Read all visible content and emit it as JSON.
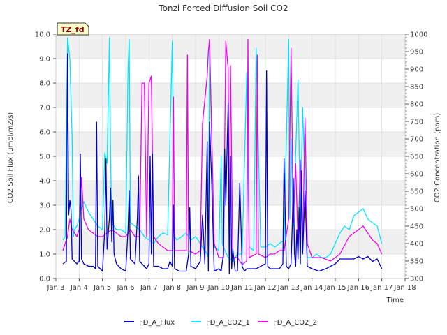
{
  "chart_data": {
    "type": "line",
    "title": "Tonzi Forced Diffusion Soil CO2",
    "badge": "TZ_fd",
    "xlabel": "Time",
    "ylabel": "CO2 Soil Flux (umol/m2/s)",
    "ylabel_right": "CO2 Concentration (ppm)",
    "xlim": [
      3,
      18
    ],
    "ylim": [
      0,
      10
    ],
    "ylim_right": [
      300,
      1000
    ],
    "x_ticks": [
      3,
      4,
      5,
      6,
      7,
      8,
      9,
      10,
      11,
      12,
      13,
      14,
      15,
      16,
      17,
      18
    ],
    "x_tick_labels": [
      "Jan 3",
      "Jan 4",
      "Jan 5",
      "Jan 6",
      "Jan 7",
      "Jan 8",
      "Jan 9",
      "Jan 10",
      "Jan 11",
      "Jan 12",
      "Jan 13",
      "Jan 14",
      "Jan 15",
      "Jan 16",
      "Jan 17",
      "Jan 18"
    ],
    "y_ticks": [
      0,
      1,
      2,
      3,
      4,
      5,
      6,
      7,
      8,
      9,
      10
    ],
    "y_tick_labels": [
      "0.0",
      "1.0",
      "2.0",
      "3.0",
      "4.0",
      "5.0",
      "6.0",
      "7.0",
      "8.0",
      "9.0",
      "10.0"
    ],
    "y_ticks_right": [
      300,
      350,
      400,
      450,
      500,
      550,
      600,
      650,
      700,
      750,
      800,
      850,
      900,
      950,
      1000
    ],
    "y_tick_labels_right": [
      "300",
      "350",
      "400",
      "450",
      "500",
      "550",
      "600",
      "650",
      "700",
      "750",
      "800",
      "850",
      "900",
      "950",
      "1000"
    ],
    "grid": true,
    "legend_position": "bottom",
    "series": [
      {
        "name": "FD_A_Flux",
        "axis": "left",
        "color": "#0000cc",
        "x": [
          3.3,
          3.45,
          3.5,
          3.55,
          3.6,
          3.65,
          3.7,
          3.8,
          3.9,
          4.0,
          4.05,
          4.1,
          4.2,
          4.4,
          4.6,
          4.7,
          4.75,
          4.8,
          5.0,
          5.1,
          5.15,
          5.2,
          5.3,
          5.35,
          5.4,
          5.45,
          5.5,
          5.6,
          5.8,
          6.0,
          6.1,
          6.15,
          6.2,
          6.4,
          6.5,
          6.55,
          6.6,
          6.8,
          6.9,
          7.0,
          7.05,
          7.1,
          7.15,
          7.2,
          7.4,
          7.6,
          7.8,
          7.9,
          8.0,
          8.05,
          8.1,
          8.3,
          8.6,
          8.7,
          8.75,
          8.8,
          9.0,
          9.2,
          9.3,
          9.35,
          9.4,
          9.5,
          9.55,
          9.6,
          9.7,
          9.8,
          10.0,
          10.1,
          10.2,
          10.25,
          10.3,
          10.4,
          10.45,
          10.5,
          10.55,
          10.6,
          10.7,
          10.8,
          10.9,
          11.0,
          11.05,
          11.1,
          11.2,
          11.4,
          11.6,
          11.8,
          12.0,
          12.05,
          12.1,
          12.2,
          12.4,
          12.6,
          12.75,
          12.8,
          12.9,
          13.0,
          13.05,
          13.1,
          13.15,
          13.2,
          13.25,
          13.3,
          13.35,
          13.4,
          13.45,
          13.5,
          13.55,
          13.6,
          13.7,
          13.8,
          14.0,
          14.3,
          14.6,
          15.0,
          15.2,
          15.4,
          15.6,
          15.8,
          16.0,
          16.2,
          16.4,
          16.6,
          16.8,
          17.0
        ],
        "y": [
          0.6,
          0.7,
          9.2,
          2.6,
          3.2,
          2.8,
          0.8,
          0.7,
          0.6,
          0.7,
          5.1,
          0.8,
          0.6,
          0.5,
          0.5,
          0.4,
          6.4,
          0.5,
          0.3,
          2.0,
          4.9,
          1.2,
          2.5,
          3.7,
          1.5,
          3.2,
          1.0,
          0.6,
          0.4,
          0.3,
          2.0,
          3.6,
          0.8,
          0.6,
          2.5,
          4.2,
          0.7,
          0.5,
          0.4,
          0.6,
          5.0,
          1.0,
          5.1,
          0.5,
          0.5,
          0.4,
          0.4,
          0.7,
          0.5,
          3.0,
          0.4,
          0.3,
          0.3,
          1.0,
          2.9,
          0.5,
          0.4,
          0.7,
          2.6,
          1.6,
          0.6,
          5.6,
          0.3,
          6.4,
          3.8,
          0.3,
          0.4,
          0.3,
          1.0,
          5.3,
          3.0,
          7.2,
          0.2,
          5.0,
          0.4,
          1.2,
          0.3,
          0.3,
          3.9,
          0.5,
          0.4,
          0.3,
          0.4,
          0.4,
          0.4,
          0.5,
          0.6,
          8.5,
          0.5,
          0.4,
          0.4,
          0.4,
          0.6,
          4.9,
          0.5,
          0.4,
          0.5,
          0.6,
          2.0,
          4.1,
          1.0,
          0.5,
          2.0,
          0.8,
          2.9,
          0.6,
          4.4,
          1.0,
          3.6,
          0.5,
          0.4,
          0.3,
          0.4,
          0.6,
          0.8,
          0.8,
          0.8,
          0.8,
          0.9,
          0.8,
          0.9,
          0.7,
          0.8,
          0.4
        ]
      },
      {
        "name": "FD_A_CO2_1",
        "axis": "right",
        "color": "#00e5ff",
        "x": [
          3.3,
          3.4,
          3.5,
          3.55,
          3.6,
          3.7,
          3.75,
          3.8,
          3.9,
          4.0,
          4.1,
          4.2,
          4.4,
          4.6,
          4.8,
          5.0,
          5.1,
          5.2,
          5.3,
          5.35,
          5.4,
          5.5,
          5.6,
          5.8,
          6.0,
          6.1,
          6.15,
          6.2,
          6.4,
          6.6,
          6.8,
          7.0,
          7.2,
          7.4,
          7.6,
          7.8,
          8.0,
          8.1,
          8.2,
          8.4,
          8.6,
          8.8,
          9.0,
          9.2,
          9.4,
          9.5,
          9.55,
          9.6,
          9.8,
          10.0,
          10.1,
          10.15,
          10.2,
          10.4,
          10.6,
          10.8,
          11.0,
          11.2,
          11.25,
          11.3,
          11.5,
          11.6,
          11.8,
          12.0,
          12.2,
          12.4,
          12.6,
          12.8,
          13.0,
          13.05,
          13.1,
          13.2,
          13.4,
          13.5,
          13.6,
          13.8,
          14.0,
          14.2,
          14.4,
          14.6,
          14.8,
          15.0,
          15.2,
          15.4,
          15.6,
          15.8,
          16.0,
          16.2,
          16.4,
          16.6,
          16.8,
          17.0
        ],
        "y": [
          410,
          420,
          990,
          960,
          930,
          700,
          420,
          440,
          450,
          470,
          500,
          520,
          490,
          470,
          450,
          440,
          660,
          630,
          990,
          650,
          460,
          450,
          440,
          440,
          430,
          900,
          985,
          460,
          450,
          440,
          420,
          410,
          400,
          420,
          430,
          425,
          980,
          420,
          410,
          420,
          430,
          410,
          420,
          400,
          380,
          370,
          360,
          970,
          390,
          380,
          650,
          400,
          390,
          360,
          350,
          370,
          370,
          890,
          610,
          390,
          380,
          960,
          390,
          390,
          400,
          390,
          400,
          410,
          985,
          470,
          700,
          450,
          870,
          460,
          790,
          360,
          360,
          370,
          360,
          360,
          370,
          400,
          430,
          450,
          440,
          480,
          490,
          500,
          470,
          460,
          450,
          400
        ]
      },
      {
        "name": "FD_A_CO2_2",
        "axis": "right",
        "color": "#ee00ee",
        "x": [
          3.3,
          3.4,
          3.5,
          3.6,
          3.7,
          3.8,
          3.9,
          4.0,
          4.1,
          4.2,
          4.4,
          4.6,
          4.8,
          5.0,
          5.2,
          5.4,
          5.6,
          5.8,
          6.0,
          6.2,
          6.4,
          6.6,
          6.7,
          6.8,
          6.9,
          7.0,
          7.1,
          7.2,
          7.4,
          7.6,
          7.8,
          8.0,
          8.05,
          8.1,
          8.4,
          8.6,
          8.65,
          8.7,
          9.0,
          9.2,
          9.3,
          9.5,
          9.55,
          9.6,
          9.7,
          9.8,
          10.0,
          10.2,
          10.3,
          10.4,
          10.45,
          10.5,
          10.6,
          10.8,
          11.0,
          11.2,
          11.25,
          11.3,
          11.6,
          11.65,
          11.7,
          12.0,
          12.2,
          12.4,
          12.6,
          12.8,
          13.0,
          13.1,
          13.2,
          13.3,
          13.4,
          13.5,
          13.6,
          13.7,
          13.8,
          14.0,
          14.4,
          14.8,
          15.2,
          15.6,
          16.0,
          16.2,
          16.4,
          16.6,
          16.8,
          17.0
        ],
        "y": [
          380,
          400,
          420,
          470,
          440,
          430,
          420,
          440,
          590,
          470,
          440,
          430,
          420,
          420,
          430,
          440,
          430,
          420,
          420,
          440,
          420,
          420,
          860,
          860,
          420,
          860,
          880,
          420,
          400,
          390,
          380,
          380,
          820,
          380,
          380,
          380,
          940,
          380,
          370,
          380,
          745,
          880,
          950,
          985,
          700,
          400,
          360,
          360,
          980,
          900,
          360,
          910,
          360,
          360,
          340,
          350,
          985,
          360,
          370,
          940,
          370,
          360,
          370,
          370,
          380,
          380,
          470,
          960,
          460,
          630,
          400,
          640,
          390,
          760,
          400,
          360,
          360,
          350,
          370,
          420,
          440,
          450,
          430,
          410,
          400,
          370
        ]
      }
    ]
  }
}
